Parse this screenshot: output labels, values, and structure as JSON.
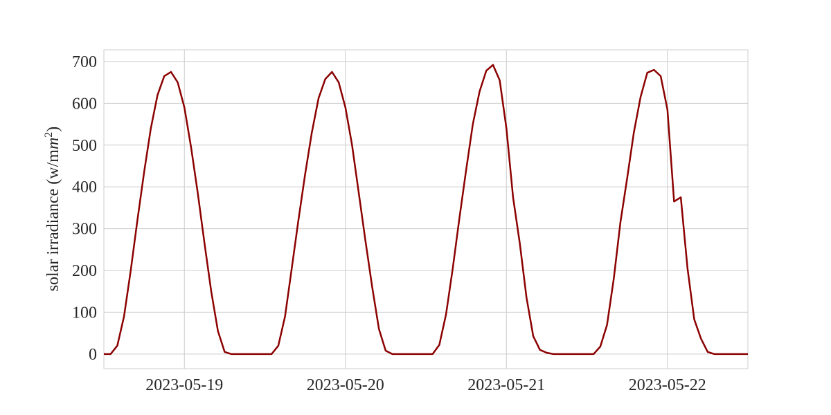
{
  "chart_data": {
    "type": "line",
    "title": "",
    "xlabel": "",
    "ylabel": "solar irradiance (w/m",
    "ylabel_unit": "m",
    "ylabel_sup": "2",
    "ylabel_close": ")",
    "x_start": "2023-05-18 12:00",
    "x_end": "2023-05-22 12:00",
    "xticks": [
      "2023-05-19",
      "2023-05-20",
      "2023-05-21",
      "2023-05-22"
    ],
    "yticks": [
      0,
      100,
      200,
      300,
      400,
      500,
      600,
      700
    ],
    "ylim": [
      -35,
      728
    ],
    "grid": true,
    "line_color": "#8b0000",
    "series": [
      {
        "x": [
          "2023-05-18 12:00",
          "2023-05-18 13:00",
          "2023-05-18 14:00",
          "2023-05-18 15:00",
          "2023-05-18 16:00",
          "2023-05-18 17:00",
          "2023-05-18 18:00",
          "2023-05-18 19:00",
          "2023-05-18 20:00",
          "2023-05-18 21:00",
          "2023-05-18 22:00",
          "2023-05-18 23:00",
          "2023-05-19 00:00",
          "2023-05-19 01:00",
          "2023-05-19 02:00",
          "2023-05-19 03:00",
          "2023-05-19 04:00",
          "2023-05-19 05:00",
          "2023-05-19 06:00",
          "2023-05-19 07:00",
          "2023-05-19 08:00",
          "2023-05-19 09:00",
          "2023-05-19 10:00",
          "2023-05-19 11:00",
          "2023-05-19 12:00",
          "2023-05-19 13:00",
          "2023-05-19 14:00",
          "2023-05-19 15:00",
          "2023-05-19 16:00",
          "2023-05-19 17:00",
          "2023-05-19 18:00",
          "2023-05-19 19:00",
          "2023-05-19 20:00",
          "2023-05-19 21:00",
          "2023-05-19 22:00",
          "2023-05-19 23:00",
          "2023-05-20 00:00",
          "2023-05-20 01:00",
          "2023-05-20 02:00",
          "2023-05-20 03:00",
          "2023-05-20 04:00",
          "2023-05-20 05:00",
          "2023-05-20 06:00",
          "2023-05-20 07:00",
          "2023-05-20 08:00",
          "2023-05-20 09:00",
          "2023-05-20 10:00",
          "2023-05-20 11:00",
          "2023-05-20 12:00",
          "2023-05-20 13:00",
          "2023-05-20 14:00",
          "2023-05-20 15:00",
          "2023-05-20 16:00",
          "2023-05-20 17:00",
          "2023-05-20 18:00",
          "2023-05-20 19:00",
          "2023-05-20 20:00",
          "2023-05-20 21:00",
          "2023-05-20 22:00",
          "2023-05-20 23:00",
          "2023-05-21 00:00",
          "2023-05-21 01:00",
          "2023-05-21 02:00",
          "2023-05-21 03:00",
          "2023-05-21 04:00",
          "2023-05-21 05:00",
          "2023-05-21 06:00",
          "2023-05-21 07:00",
          "2023-05-21 08:00",
          "2023-05-21 09:00",
          "2023-05-21 10:00",
          "2023-05-21 11:00",
          "2023-05-21 12:00",
          "2023-05-21 13:00",
          "2023-05-21 14:00",
          "2023-05-21 15:00",
          "2023-05-21 16:00",
          "2023-05-21 17:00",
          "2023-05-21 18:00",
          "2023-05-21 19:00",
          "2023-05-21 20:00",
          "2023-05-21 21:00",
          "2023-05-21 22:00",
          "2023-05-21 23:00",
          "2023-05-22 00:00",
          "2023-05-22 01:00",
          "2023-05-22 02:00",
          "2023-05-22 03:00",
          "2023-05-22 04:00",
          "2023-05-22 05:00",
          "2023-05-22 06:00",
          "2023-05-22 07:00",
          "2023-05-22 08:00",
          "2023-05-22 09:00",
          "2023-05-22 10:00",
          "2023-05-22 11:00",
          "2023-05-22 12:00"
        ],
        "values": [
          0,
          0,
          20,
          90,
          200,
          320,
          435,
          540,
          620,
          665,
          675,
          650,
          590,
          495,
          385,
          265,
          150,
          55,
          5,
          0,
          0,
          0,
          0,
          0,
          0,
          0,
          20,
          90,
          205,
          320,
          430,
          530,
          612,
          658,
          675,
          650,
          590,
          500,
          385,
          270,
          160,
          60,
          8,
          0,
          0,
          0,
          0,
          0,
          0,
          0,
          22,
          95,
          205,
          325,
          440,
          550,
          628,
          678,
          692,
          655,
          540,
          375,
          265,
          135,
          43,
          10,
          3,
          0,
          0,
          0,
          0,
          0,
          0,
          0,
          18,
          70,
          180,
          315,
          420,
          530,
          615,
          673,
          680,
          665,
          585,
          365,
          375,
          205,
          83,
          37,
          5,
          0,
          0,
          0,
          0,
          0,
          0
        ]
      }
    ]
  }
}
